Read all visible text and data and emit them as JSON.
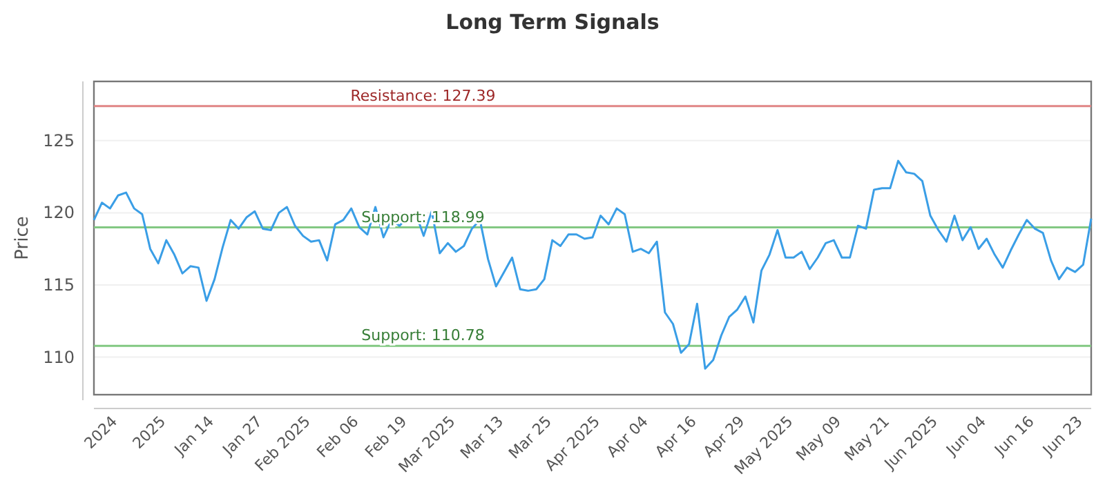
{
  "chart_data": {
    "type": "line",
    "title": "Long Term Signals",
    "ylabel": "Price",
    "categories": [
      null,
      null,
      null,
      "2024",
      null,
      null,
      null,
      null,
      null,
      "2025",
      null,
      null,
      null,
      null,
      null,
      "Jan 14",
      null,
      null,
      null,
      null,
      null,
      "Jan 27",
      null,
      null,
      null,
      null,
      null,
      "Feb 2025",
      null,
      null,
      null,
      null,
      null,
      "Feb 06",
      null,
      null,
      null,
      null,
      null,
      "Feb 19",
      null,
      null,
      null,
      null,
      null,
      "Mar 2025",
      null,
      null,
      null,
      null,
      null,
      "Mar 13",
      null,
      null,
      null,
      null,
      null,
      "Mar 25",
      null,
      null,
      null,
      null,
      null,
      "Apr 2025",
      null,
      null,
      null,
      null,
      null,
      "Apr 04",
      null,
      null,
      null,
      null,
      null,
      "Apr 16",
      null,
      null,
      null,
      null,
      null,
      "Apr 29",
      null,
      null,
      null,
      null,
      null,
      "May 2025",
      null,
      null,
      null,
      null,
      null,
      "May 09",
      null,
      null,
      null,
      null,
      null,
      "May 21",
      null,
      null,
      null,
      null,
      null,
      "Jun 2025",
      null,
      null,
      null,
      null,
      null,
      "Jun 04",
      null,
      null,
      null,
      null,
      null,
      "Jun 16",
      null,
      null,
      null,
      null,
      null,
      "Jun 23",
      null
    ],
    "series": [
      {
        "color": "#3a9ee6",
        "values": [
          119.5,
          120.7,
          120.3,
          121.2,
          121.4,
          120.3,
          119.9,
          117.5,
          116.5,
          118.1,
          117.1,
          115.8,
          116.3,
          116.2,
          113.9,
          115.4,
          117.6,
          119.5,
          118.9,
          119.7,
          120.1,
          118.9,
          118.8,
          120.0,
          120.4,
          119.1,
          118.4,
          118.0,
          118.1,
          116.7,
          119.2,
          119.5,
          120.3,
          119.0,
          118.5,
          120.4,
          118.3,
          119.5,
          119.1,
          119.7,
          120.0,
          118.4,
          120.1,
          117.2,
          117.9,
          117.3,
          117.7,
          118.9,
          119.5,
          116.8,
          114.9,
          115.9,
          116.9,
          114.7,
          114.6,
          114.7,
          115.4,
          118.1,
          117.7,
          118.5,
          118.5,
          118.2,
          118.3,
          119.8,
          119.2,
          120.3,
          119.9,
          117.3,
          117.5,
          117.2,
          118.0,
          113.1,
          112.3,
          110.3,
          110.9,
          113.7,
          109.2,
          109.8,
          111.5,
          112.8,
          113.3,
          114.2,
          112.4,
          116.0,
          117.1,
          118.8,
          116.9,
          116.9,
          117.3,
          116.1,
          116.9,
          117.9,
          118.1,
          116.9,
          116.9,
          119.1,
          118.9,
          121.6,
          121.7,
          121.7,
          123.6,
          122.8,
          122.7,
          122.2,
          119.8,
          118.8,
          118.0,
          119.8,
          118.1,
          119.0,
          117.5,
          118.2,
          117.1,
          116.2,
          117.4,
          118.5,
          119.5,
          118.9,
          118.6,
          116.7,
          115.4,
          116.2,
          115.9,
          116.4,
          119.6
        ]
      }
    ],
    "ylim": [
      107.4,
      129.1
    ],
    "yticks": [
      110,
      115,
      120,
      125
    ],
    "grid": "y",
    "marker": "none",
    "line_style": "solid",
    "ref_lines": [
      {
        "axis": "y",
        "value": 127.39,
        "label": "Resistance: 127.39",
        "color": "#e08585"
      },
      {
        "axis": "y",
        "value": 118.99,
        "label": "Support: 118.99",
        "color": "#82c882"
      },
      {
        "axis": "y",
        "value": 110.78,
        "label": "Support: 110.78",
        "color": "#82c882"
      }
    ]
  }
}
